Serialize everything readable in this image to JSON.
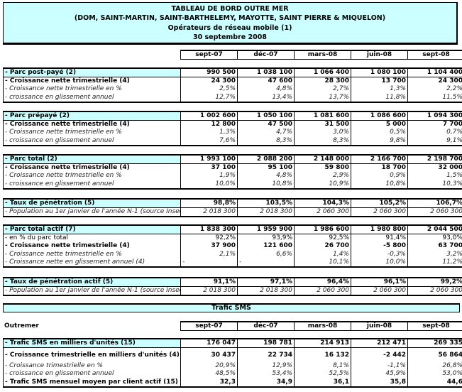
{
  "title": {
    "line1": "TABLEAU DE BORD OUTRE MER",
    "line2": "(DOM, SAINT-MARTIN, SAINT-BARTHELEMY, MAYOTTE, SAINT PIERRE & MIQUELON)",
    "line3": "Opérateurs de réseau mobile (1)",
    "line4": "30 septembre 2008"
  },
  "columns": [
    "sept-07",
    "déc-07",
    "mars-08",
    "juin-08",
    "sept-08"
  ],
  "blocks": [
    {
      "rows": [
        {
          "style": "head",
          "label": "- Parc post-payé (2)",
          "values": [
            "990 500",
            "1 038 100",
            "1 066 400",
            "1 080 100",
            "1 104 400"
          ]
        },
        {
          "style": "bold",
          "label": "- Croissance nette trimestrielle (4)",
          "values": [
            "24 300",
            "47 600",
            "28 300",
            "13 700",
            "24 300"
          ]
        },
        {
          "style": "italic",
          "label": "- Croissance nette trimestrielle en %",
          "values": [
            "2,5%",
            "4,8%",
            "2,7%",
            "1,3%",
            "2,2%"
          ]
        },
        {
          "style": "italic",
          "label": "- croissance en glissement annuel",
          "values": [
            "12,7%",
            "13,4%",
            "13,7%",
            "11,8%",
            "11,5%"
          ]
        }
      ]
    },
    {
      "rows": [
        {
          "style": "head",
          "label": "- Parc prépayé (2)",
          "values": [
            "1 002 600",
            "1 050 100",
            "1 081 600",
            "1 086 600",
            "1 094 300"
          ]
        },
        {
          "style": "bold",
          "label": "- Croissance nette trimestrielle (4)",
          "values": [
            "12 800",
            "47 500",
            "31 500",
            "5 000",
            "7 700"
          ]
        },
        {
          "style": "italic",
          "label": "- Croissance nette trimestrielle en %",
          "values": [
            "1,3%",
            "4,7%",
            "3,0%",
            "0,5%",
            "0,7%"
          ]
        },
        {
          "style": "italic",
          "label": "- croissance en glissement annuel",
          "values": [
            "7,6%",
            "8,3%",
            "8,3%",
            "9,8%",
            "9,1%"
          ]
        }
      ]
    },
    {
      "rows": [
        {
          "style": "head",
          "label": "- Parc total (2)",
          "values": [
            "1 993 100",
            "2 088 200",
            "2 148 000",
            "2 166 700",
            "2 198 700"
          ]
        },
        {
          "style": "bold",
          "label": "- Croissance nette trimestrielle (4)",
          "values": [
            "37 100",
            "95 100",
            "59 800",
            "18 700",
            "32 000"
          ]
        },
        {
          "style": "italic",
          "label": "- Croissance nette trimestrielle en %",
          "values": [
            "1,9%",
            "4,8%",
            "2,9%",
            "0,9%",
            "1,5%"
          ]
        },
        {
          "style": "italic",
          "label": "- croissance en glissement annuel",
          "values": [
            "10,0%",
            "10,8%",
            "10,9%",
            "10,8%",
            "10,3%"
          ]
        }
      ]
    },
    {
      "rows": [
        {
          "style": "head",
          "label": "- Taux de pénétration (5)",
          "values": [
            "98,8%",
            "103,5%",
            "104,3%",
            "105,2%",
            "106,7%"
          ]
        },
        {
          "style": "italic",
          "label": "- Population au 1er janvier de l'année N-1 (source Insee)",
          "values": [
            "2 018 300",
            "2 018 300",
            "2 060 300",
            "2 060 300",
            "2 060 300"
          ]
        }
      ]
    },
    {
      "rows": [
        {
          "style": "head",
          "label": "- Parc total actif (7)",
          "values": [
            "1 838 300",
            "1 959 900",
            "1 986 600",
            "1 980 800",
            "2 044 500"
          ]
        },
        {
          "style": "normal",
          "label": "- en % du parc total",
          "values": [
            "92,2%",
            "93,9%",
            "92,5%",
            "91,4%",
            "93,0%"
          ]
        },
        {
          "style": "bold",
          "label": "- Croissance nette trimestrielle (4)",
          "values": [
            "37 900",
            "121 600",
            "26 700",
            "-5 800",
            "63 700"
          ]
        },
        {
          "style": "italic",
          "label": "- Croissance nette trimestrielle en %",
          "values": [
            "2,1%",
            "6,6%",
            "1,4%",
            "-0,3%",
            "3,2%"
          ]
        },
        {
          "style": "italic",
          "label": "- Croissance nette en glissement annuel (4)",
          "values": [
            "-",
            "-",
            "10,1%",
            "10,0%",
            "11,2%"
          ],
          "left_align_first": 2
        }
      ]
    },
    {
      "rows": [
        {
          "style": "head",
          "label": "- Taux de pénétration actif (5)",
          "values": [
            "91,1%",
            "97,1%",
            "96,4%",
            "96,1%",
            "99,2%"
          ]
        },
        {
          "style": "italic",
          "label": "- Population au 1er janvier de l'année N-1 (source Insee)",
          "values": [
            "2 018 300",
            "2 018 300",
            "2 060 300",
            "2 060 300",
            "2 060 300"
          ]
        }
      ]
    }
  ],
  "sms": {
    "section_title": "Trafic SMS",
    "region_label": "Outremer",
    "columns": [
      "sept-07",
      "déc-07",
      "mars-08",
      "juin-08",
      "sept-08"
    ],
    "rows": [
      {
        "style": "head",
        "label": "- Trafic SMS en milliers d'unités (15)",
        "values": [
          "176 047",
          "198 781",
          "214 913",
          "212 471",
          "269 335"
        ]
      },
      {
        "style": "bold tall",
        "label": "- Croissance trimestrielle en milliers d'unités (4)",
        "values": [
          "30 437",
          "22 734",
          "16 132",
          "-2 442",
          "56 864"
        ]
      },
      {
        "style": "italic",
        "label": "- Croissance trimestrielle en %",
        "values": [
          "20,9%",
          "12,9%",
          "8,1%",
          "-1,1%",
          "26,8%"
        ]
      },
      {
        "style": "italic",
        "label": "- croissance en glissement annuel",
        "values": [
          "48,5%",
          "53,4%",
          "52,5%",
          "45,9%",
          "53,0%"
        ]
      },
      {
        "style": "bold",
        "label": "- Trafic SMS mensuel moyen par client actif (15)",
        "values": [
          "32,3",
          "34,9",
          "36,1",
          "35,8",
          "44,6"
        ]
      }
    ]
  },
  "colors": {
    "header_fill": "#ccffff",
    "border": "#000000"
  }
}
